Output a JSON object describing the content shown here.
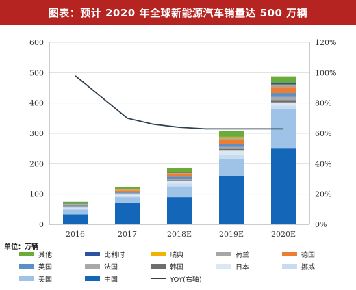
{
  "header": {
    "title": "图表：预计 2020 年全球新能源汽车销量达 500 万辆"
  },
  "unit_label": "单位：万辆",
  "legend": [
    {
      "key": "qita",
      "label": "其他",
      "color": "#6aab3a",
      "kind": "bar"
    },
    {
      "key": "bilishi",
      "label": "比利时",
      "color": "#2d52a0",
      "kind": "bar"
    },
    {
      "key": "ruidian",
      "label": "瑞典",
      "color": "#f0b400",
      "kind": "bar"
    },
    {
      "key": "helan",
      "label": "荷兰",
      "color": "#a6a6a6",
      "kind": "bar"
    },
    {
      "key": "deguo",
      "label": "德国",
      "color": "#ed7d31",
      "kind": "bar"
    },
    {
      "key": "yingguo",
      "label": "英国",
      "color": "#5b8fc9",
      "kind": "bar"
    },
    {
      "key": "faguo",
      "label": "法国",
      "color": "#a8a8a8",
      "kind": "bar"
    },
    {
      "key": "hanguo",
      "label": "韩国",
      "color": "#6e6e6e",
      "kind": "bar"
    },
    {
      "key": "riben",
      "label": "日本",
      "color": "#dbe7f3",
      "kind": "bar"
    },
    {
      "key": "nuowei",
      "label": "挪威",
      "color": "#c9dbef",
      "kind": "bar"
    },
    {
      "key": "meiguo",
      "label": "美国",
      "color": "#9fc3e6",
      "kind": "bar"
    },
    {
      "key": "zhongguo",
      "label": "中国",
      "color": "#1467b8",
      "kind": "bar"
    },
    {
      "key": "yoy",
      "label": "YOY(右轴)",
      "color": "#2f4050",
      "kind": "line"
    }
  ],
  "chart_data": {
    "type": "bar",
    "stacked": true,
    "categories": [
      "2016",
      "2017",
      "2018E",
      "2019E",
      "2020E"
    ],
    "series": [
      {
        "name": "中国",
        "values": [
          33,
          70,
          90,
          160,
          250
        ]
      },
      {
        "name": "美国",
        "values": [
          16,
          20,
          35,
          55,
          130
        ]
      },
      {
        "name": "挪威",
        "values": [
          4,
          5,
          10,
          15,
          12
        ]
      },
      {
        "name": "日本",
        "values": [
          3,
          4,
          8,
          13,
          10
        ]
      },
      {
        "name": "韩国",
        "values": [
          1,
          2,
          3,
          6,
          8
        ]
      },
      {
        "name": "法国",
        "values": [
          3,
          3,
          5,
          7,
          10
        ]
      },
      {
        "name": "英国",
        "values": [
          3,
          4,
          6,
          10,
          13
        ]
      },
      {
        "name": "德国",
        "values": [
          2,
          4,
          8,
          12,
          20
        ]
      },
      {
        "name": "荷兰",
        "values": [
          2,
          2,
          3,
          5,
          5
        ]
      },
      {
        "name": "瑞典",
        "values": [
          1,
          1,
          2,
          3,
          3
        ]
      },
      {
        "name": "比利时",
        "values": [
          1,
          1,
          2,
          3,
          4
        ]
      },
      {
        "name": "其他",
        "values": [
          6,
          6,
          13,
          19,
          23
        ]
      }
    ],
    "line_series": {
      "name": "YOY(右轴)",
      "axis": "right",
      "values": [
        98,
        null,
        null,
        63,
        63
      ]
    },
    "yoy_curve": [
      {
        "x": 0,
        "y": 98
      },
      {
        "x": 0.5,
        "y": 84
      },
      {
        "x": 1,
        "y": 70
      },
      {
        "x": 1.5,
        "y": 66
      },
      {
        "x": 2,
        "y": 64
      },
      {
        "x": 2.5,
        "y": 63
      },
      {
        "x": 3,
        "y": 63
      },
      {
        "x": 4,
        "y": 63
      }
    ],
    "ylim": [
      0,
      600
    ],
    "yticks": [
      "0",
      "100",
      "200",
      "300",
      "400",
      "500",
      "600"
    ],
    "ylim_right": [
      0,
      120
    ],
    "yticks_right": [
      "0%",
      "20%",
      "40%",
      "60%",
      "80%",
      "100%",
      "120%"
    ],
    "xlabel": "",
    "ylabel": "",
    "legend_position": "bottom"
  }
}
